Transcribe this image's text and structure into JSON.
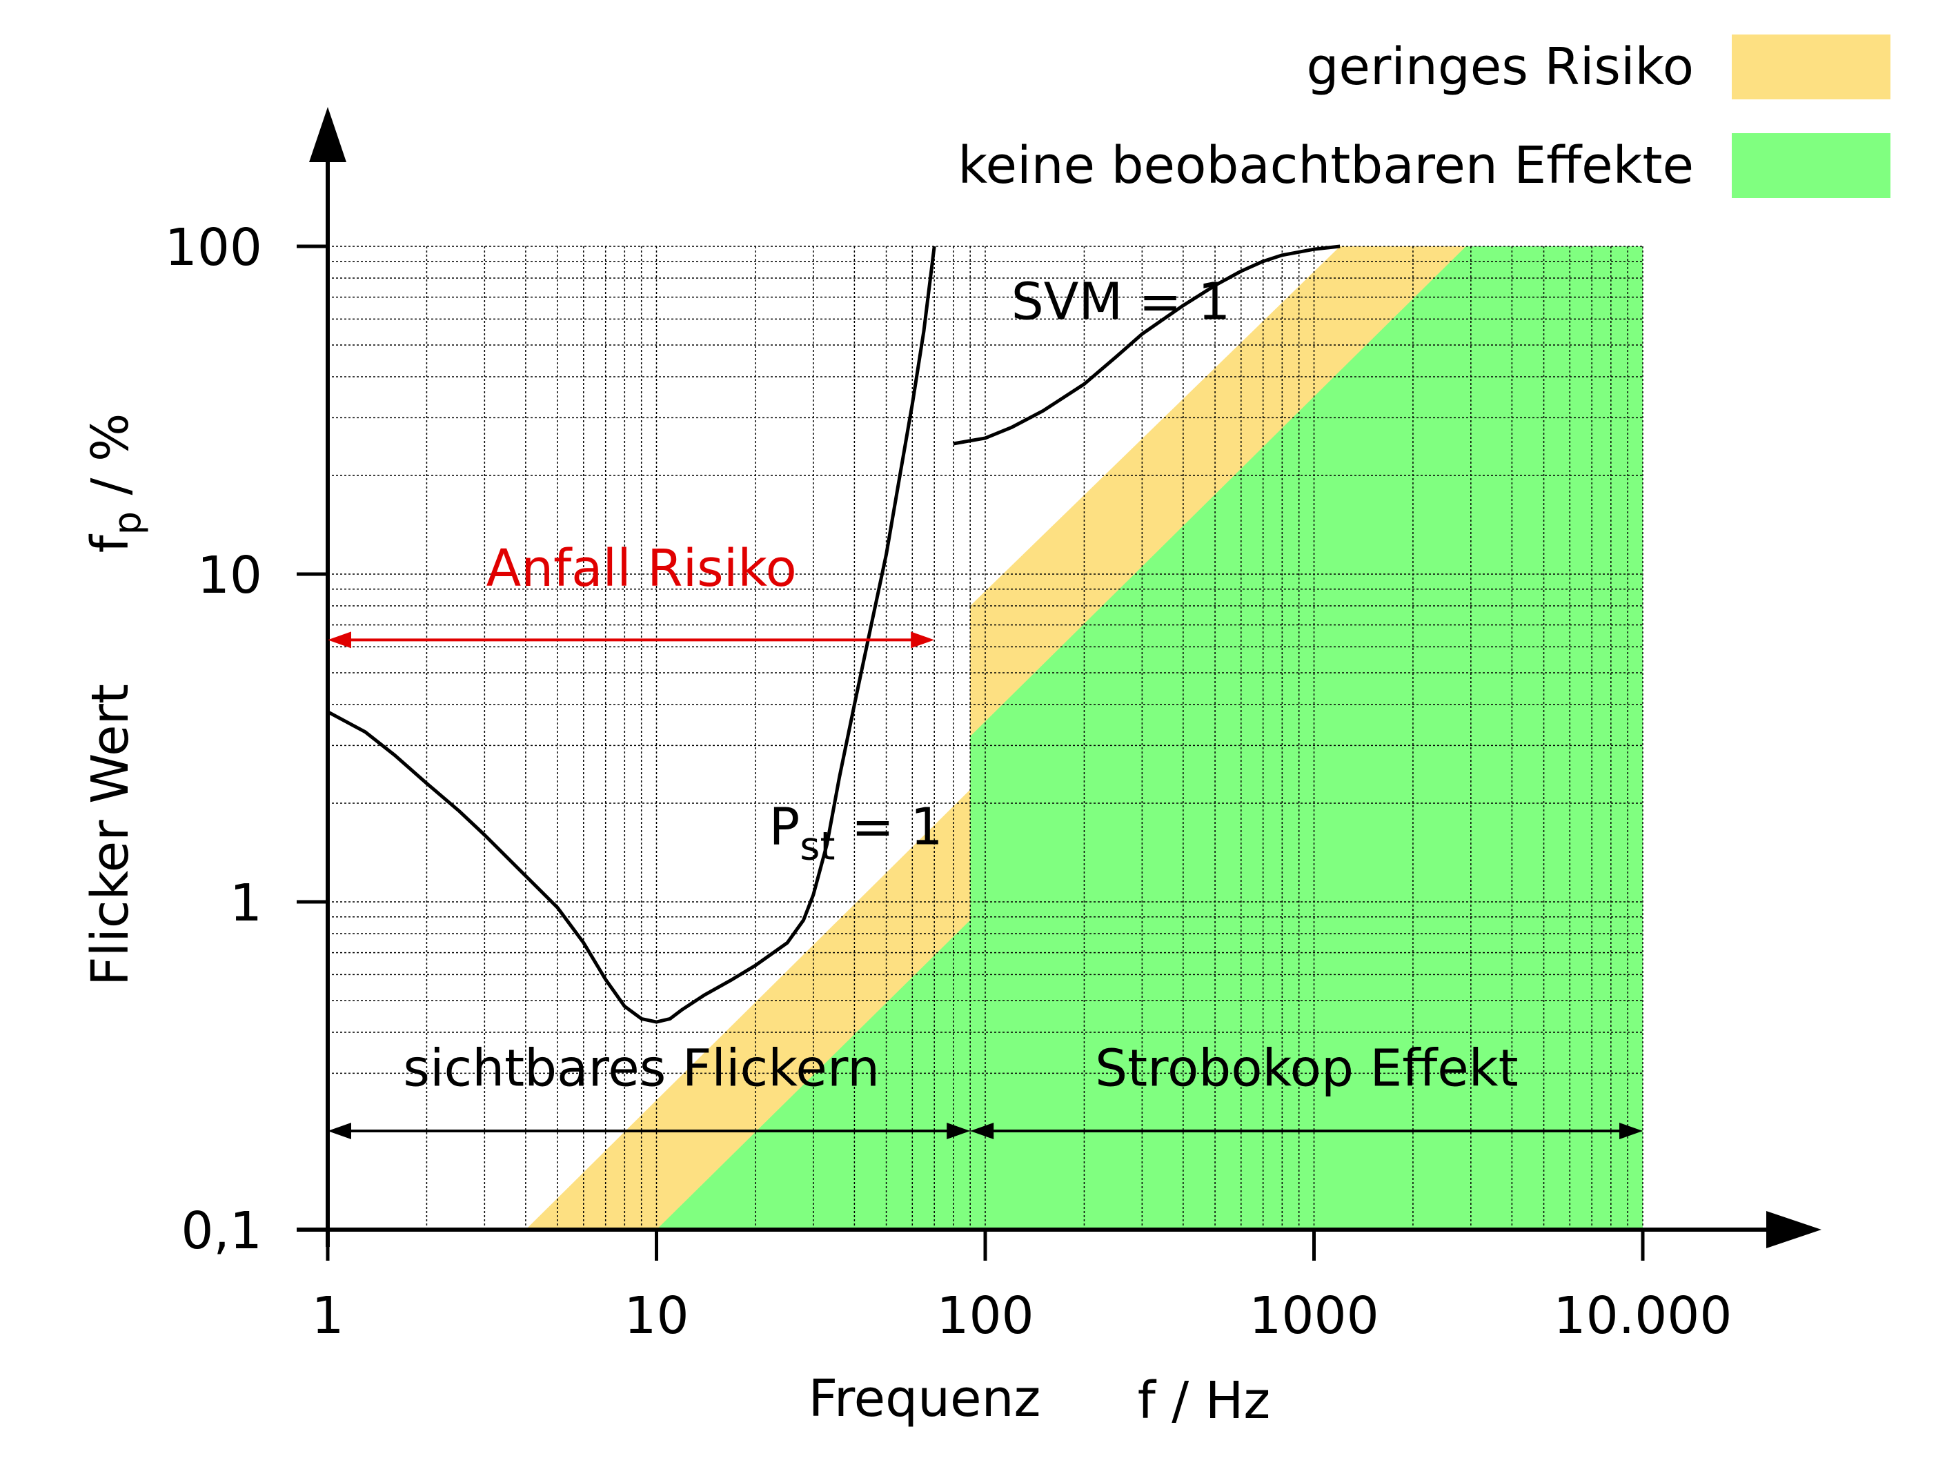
{
  "chart_data": {
    "type": "area",
    "scale": {
      "x": "log",
      "y": "log"
    },
    "xlim": [
      1,
      10000
    ],
    "ylim": [
      0.1,
      100
    ],
    "x_ticks": [
      {
        "value": 1,
        "label": "1"
      },
      {
        "value": 10,
        "label": "10"
      },
      {
        "value": 100,
        "label": "100"
      },
      {
        "value": 1000,
        "label": "1000"
      },
      {
        "value": 10000,
        "label": "10.000"
      }
    ],
    "y_ticks": [
      {
        "value": 0.1,
        "label": "0,1"
      },
      {
        "value": 1,
        "label": "1"
      },
      {
        "value": 10,
        "label": "10"
      },
      {
        "value": 100,
        "label": "100"
      }
    ],
    "xlabel": "Frequenz",
    "xunit": "f / Hz",
    "ylabel": "Flicker Wert",
    "yunit_main": "f",
    "yunit_sub": "p",
    "yunit_rest": " / %",
    "grid": true,
    "legend": [
      {
        "name": "geringes Risiko",
        "color": "#fde082"
      },
      {
        "name": "keine beobachtbaren Effekte",
        "color": "#80ff80"
      }
    ],
    "regions": [
      {
        "name": "geringes Risiko",
        "color": "#fde082",
        "polygon": [
          [
            4,
            0.1
          ],
          [
            90,
            2.2
          ],
          [
            90,
            8
          ],
          [
            1200,
            100
          ],
          [
            3000,
            100
          ],
          [
            10000,
            100
          ],
          [
            10000,
            0.1
          ]
        ]
      },
      {
        "name": "keine beobachtbaren Effekte",
        "color": "#80ff80",
        "polygon": [
          [
            10,
            0.1
          ],
          [
            90,
            0.88
          ],
          [
            90,
            3.2
          ],
          [
            2900,
            100
          ],
          [
            10000,
            100
          ],
          [
            10000,
            0.1
          ]
        ]
      }
    ],
    "series": [
      {
        "label_main": "P",
        "label_sub": "st",
        "label_rest": " = 1",
        "label_at": [
          22,
          1.5
        ],
        "points": [
          [
            1,
            3.8
          ],
          [
            1.3,
            3.3
          ],
          [
            1.6,
            2.8
          ],
          [
            2,
            2.3
          ],
          [
            2.5,
            1.9
          ],
          [
            3,
            1.6
          ],
          [
            4,
            1.2
          ],
          [
            5,
            0.96
          ],
          [
            6,
            0.75
          ],
          [
            7,
            0.58
          ],
          [
            8,
            0.48
          ],
          [
            9,
            0.44
          ],
          [
            10,
            0.43
          ],
          [
            11,
            0.44
          ],
          [
            12,
            0.47
          ],
          [
            14,
            0.52
          ],
          [
            17,
            0.58
          ],
          [
            20,
            0.64
          ],
          [
            25,
            0.75
          ],
          [
            28,
            0.88
          ],
          [
            30,
            1.05
          ],
          [
            33,
            1.5
          ],
          [
            36,
            2.4
          ],
          [
            40,
            4
          ],
          [
            45,
            7
          ],
          [
            50,
            11.5
          ],
          [
            55,
            20
          ],
          [
            60,
            33
          ],
          [
            65,
            55
          ],
          [
            70,
            100
          ]
        ]
      },
      {
        "label_main": "SVM = 1",
        "label_sub": "",
        "label_rest": "",
        "label_at": [
          120,
          60
        ],
        "points": [
          [
            80,
            25
          ],
          [
            100,
            26
          ],
          [
            120,
            28
          ],
          [
            150,
            31.5
          ],
          [
            200,
            38
          ],
          [
            250,
            46
          ],
          [
            300,
            54
          ],
          [
            400,
            66
          ],
          [
            500,
            76
          ],
          [
            600,
            84
          ],
          [
            700,
            90
          ],
          [
            800,
            94
          ],
          [
            1000,
            98
          ],
          [
            1200,
            100
          ]
        ]
      }
    ],
    "annotations": [
      {
        "text": "Anfall Risiko",
        "color": "#e00000",
        "from_x": 1,
        "to_x": 70,
        "y": 6.3,
        "label_x": 9,
        "label_y": 9.2
      },
      {
        "text": "sichtbares Flickern",
        "color": "#000000",
        "from_x": 1,
        "to_x": 90,
        "y": 0.2,
        "label_x": 9,
        "label_y": 0.275
      },
      {
        "text": "Strobokop Effekt",
        "color": "#000000",
        "from_x": 90,
        "to_x": 10000,
        "y": 0.2,
        "label_x": 950,
        "label_y": 0.275
      }
    ]
  }
}
